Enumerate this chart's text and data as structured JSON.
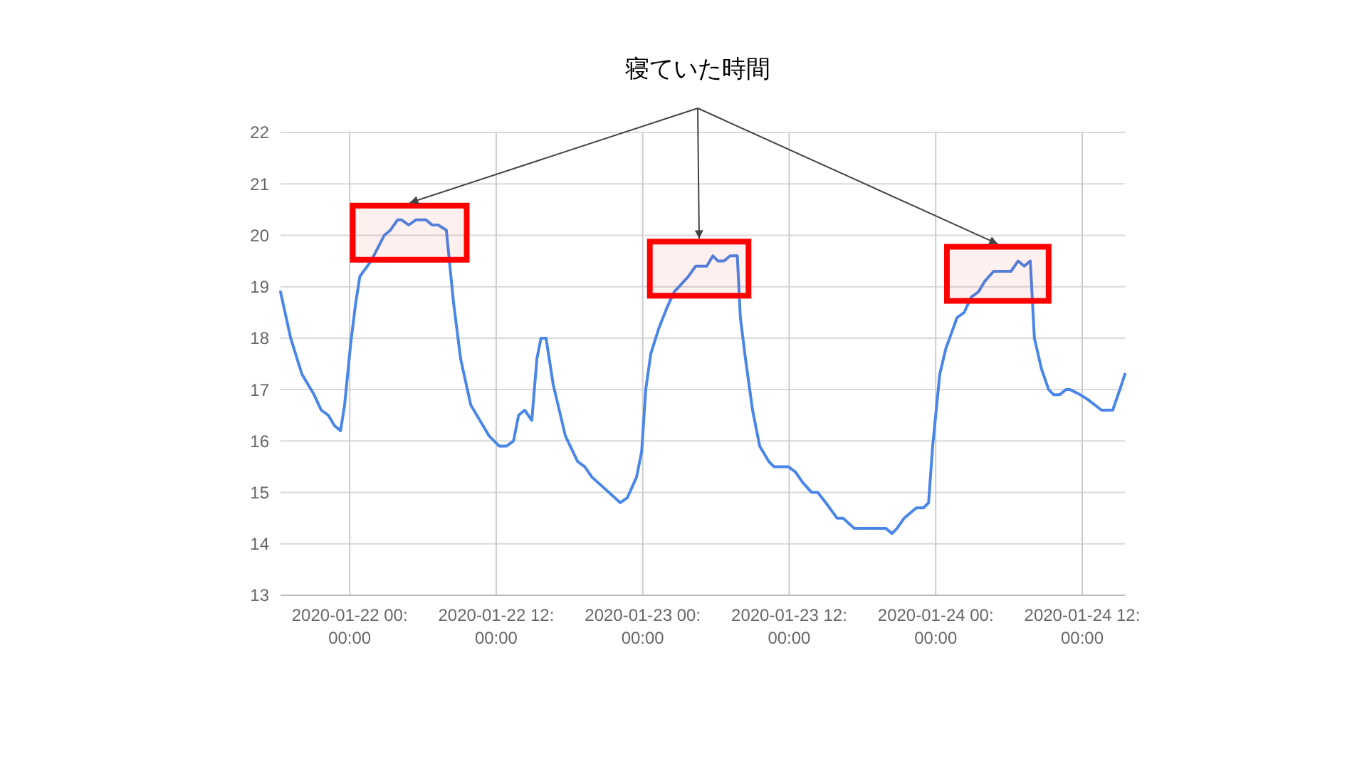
{
  "chart_data": {
    "type": "line",
    "title": "寝ていた時間",
    "x": [
      "2020-01-21T18:20",
      "2020-01-21T19:10",
      "2020-01-21T20:05",
      "2020-01-21T21:05",
      "2020-01-21T21:40",
      "2020-01-21T22:15",
      "2020-01-21T22:45",
      "2020-01-21T23:15",
      "2020-01-21T23:35",
      "2020-01-22T00:05",
      "2020-01-22T00:30",
      "2020-01-22T00:50",
      "2020-01-22T01:45",
      "2020-01-22T02:50",
      "2020-01-22T03:20",
      "2020-01-22T03:55",
      "2020-01-22T04:15",
      "2020-01-22T04:50",
      "2020-01-22T05:25",
      "2020-01-22T06:15",
      "2020-01-22T06:45",
      "2020-01-22T07:15",
      "2020-01-22T07:55",
      "2020-01-22T08:10",
      "2020-01-22T08:30",
      "2020-01-22T09:05",
      "2020-01-22T09:55",
      "2020-01-22T10:40",
      "2020-01-22T11:25",
      "2020-01-22T12:15",
      "2020-01-22T12:50",
      "2020-01-22T13:25",
      "2020-01-22T13:50",
      "2020-01-22T14:20",
      "2020-01-22T14:55",
      "2020-01-22T15:20",
      "2020-01-22T15:40",
      "2020-01-22T16:05",
      "2020-01-22T16:40",
      "2020-01-22T17:40",
      "2020-01-22T18:40",
      "2020-01-22T19:15",
      "2020-01-22T19:50",
      "2020-01-22T22:10",
      "2020-01-22T22:45",
      "2020-01-22T23:30",
      "2020-01-22T23:55",
      "2020-01-23T00:15",
      "2020-01-23T00:40",
      "2020-01-23T01:20",
      "2020-01-23T02:00",
      "2020-01-23T02:35",
      "2020-01-23T03:45",
      "2020-01-23T04:20",
      "2020-01-23T05:15",
      "2020-01-23T05:45",
      "2020-01-23T06:10",
      "2020-01-23T06:40",
      "2020-01-23T07:10",
      "2020-01-23T07:45",
      "2020-01-23T08:00",
      "2020-01-23T08:25",
      "2020-01-23T09:00",
      "2020-01-23T09:35",
      "2020-01-23T10:20",
      "2020-01-23T10:45",
      "2020-01-23T11:55",
      "2020-01-23T12:30",
      "2020-01-23T13:05",
      "2020-01-23T13:50",
      "2020-01-23T14:20",
      "2020-01-23T15:00",
      "2020-01-23T15:55",
      "2020-01-23T16:25",
      "2020-01-23T17:20",
      "2020-01-23T19:55",
      "2020-01-23T20:25",
      "2020-01-23T20:50",
      "2020-01-23T21:25",
      "2020-01-23T22:25",
      "2020-01-23T23:00",
      "2020-01-23T23:25",
      "2020-01-23T23:45",
      "2020-01-24T00:20",
      "2020-01-24T00:50",
      "2020-01-24T01:45",
      "2020-01-24T02:20",
      "2020-01-24T02:55",
      "2020-01-24T03:30",
      "2020-01-24T04:00",
      "2020-01-24T04:45",
      "2020-01-24T06:10",
      "2020-01-24T06:45",
      "2020-01-24T07:15",
      "2020-01-24T07:45",
      "2020-01-24T08:05",
      "2020-01-24T08:40",
      "2020-01-24T09:15",
      "2020-01-24T09:40",
      "2020-01-24T10:10",
      "2020-01-24T10:40",
      "2020-01-24T11:00",
      "2020-01-24T11:50",
      "2020-01-24T12:30",
      "2020-01-24T13:35",
      "2020-01-24T14:30",
      "2020-01-24T15:05",
      "2020-01-24T15:30"
    ],
    "series": [
      {
        "color": "#4a86e8",
        "values": [
          18.9,
          18.0,
          17.3,
          16.9,
          16.6,
          16.5,
          16.3,
          16.2,
          16.7,
          17.9,
          18.7,
          19.2,
          19.5,
          20.0,
          20.1,
          20.3,
          20.3,
          20.2,
          20.3,
          20.3,
          20.2,
          20.2,
          20.1,
          19.5,
          18.7,
          17.6,
          16.7,
          16.4,
          16.1,
          15.9,
          15.9,
          16.0,
          16.5,
          16.6,
          16.4,
          17.6,
          18.0,
          18.0,
          17.1,
          16.1,
          15.6,
          15.5,
          15.3,
          14.8,
          14.9,
          15.3,
          15.8,
          17.0,
          17.7,
          18.2,
          18.6,
          18.9,
          19.2,
          19.4,
          19.4,
          19.6,
          19.5,
          19.5,
          19.6,
          19.6,
          18.4,
          17.6,
          16.6,
          15.9,
          15.6,
          15.5,
          15.5,
          15.4,
          15.2,
          15.0,
          15.0,
          14.8,
          14.5,
          14.5,
          14.3,
          14.3,
          14.2,
          14.3,
          14.5,
          14.7,
          14.7,
          14.8,
          15.9,
          17.3,
          17.8,
          18.4,
          18.5,
          18.8,
          18.9,
          19.1,
          19.3,
          19.3,
          19.5,
          19.4,
          19.5,
          18.0,
          17.4,
          17.0,
          16.9,
          16.9,
          17.0,
          17.0,
          16.9,
          16.8,
          16.6,
          16.6,
          17.0,
          17.3
        ]
      }
    ],
    "xlim": [
      "2020-01-21T18:20",
      "2020-01-24T15:30"
    ],
    "xticks": [
      {
        "value": "2020-01-22T00:00",
        "label": "2020-01-22 00:00:00"
      },
      {
        "value": "2020-01-22T12:00",
        "label": "2020-01-22 12:00:00"
      },
      {
        "value": "2020-01-23T00:00",
        "label": "2020-01-23 00:00:00"
      },
      {
        "value": "2020-01-23T12:00",
        "label": "2020-01-23 12:00:00"
      },
      {
        "value": "2020-01-24T00:00",
        "label": "2020-01-24 00:00:00"
      },
      {
        "value": "2020-01-24T12:00",
        "label": "2020-01-24 12:00:00"
      }
    ],
    "ylim": [
      13,
      22
    ],
    "yticks": [
      13,
      14,
      15,
      16,
      17,
      18,
      19,
      20,
      21,
      22
    ],
    "grid": true,
    "line_style": "solid",
    "marker": "none",
    "bands": [
      {
        "axis": "x",
        "from": "2020-01-22T00:15",
        "to": "2020-01-22T09:35",
        "color": "#ff0000"
      },
      {
        "axis": "x",
        "from": "2020-01-23T00:35",
        "to": "2020-01-23T08:40",
        "color": "#ff0000"
      },
      {
        "axis": "x",
        "from": "2020-01-24T00:55",
        "to": "2020-01-24T09:15",
        "color": "#ff0000"
      }
    ]
  }
}
